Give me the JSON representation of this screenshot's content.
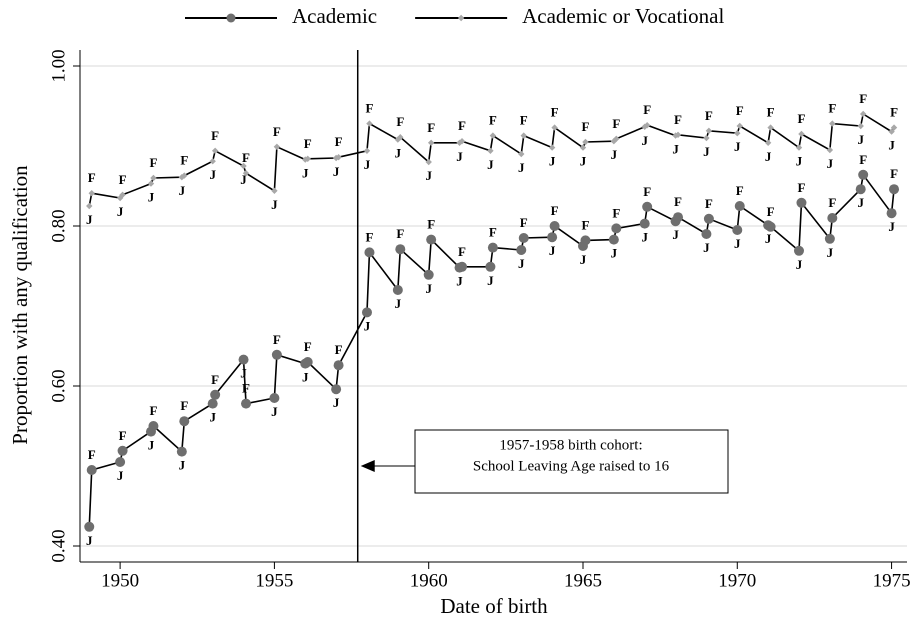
{
  "chart_data": {
    "type": "line",
    "x_label": "Date of birth",
    "y_label": "Proportion with any qualification",
    "x": [
      1949,
      1949.08,
      1950,
      1950.08,
      1951,
      1951.08,
      1952,
      1952.08,
      1953,
      1953.08,
      1954,
      1954.08,
      1955,
      1955.08,
      1956,
      1956.08,
      1957,
      1957.08,
      1958,
      1958.08,
      1959,
      1959.08,
      1960,
      1960.08,
      1961,
      1961.08,
      1962,
      1962.08,
      1963,
      1963.08,
      1964,
      1964.08,
      1965,
      1965.08,
      1966,
      1966.08,
      1967,
      1967.08,
      1968,
      1968.08,
      1969,
      1969.08,
      1970,
      1970.08,
      1971,
      1971.08,
      1972,
      1972.08,
      1973,
      1973.08,
      1974,
      1974.08,
      1975,
      1975.08
    ],
    "point_labels": [
      "J",
      "F",
      "J",
      "F",
      "J",
      "F",
      "J",
      "F",
      "J",
      "F",
      "J",
      "F",
      "J",
      "F",
      "J",
      "F",
      "J",
      "F",
      "J",
      "F",
      "J",
      "F",
      "J",
      "F",
      "J",
      "F",
      "J",
      "F",
      "J",
      "F",
      "J",
      "F",
      "J",
      "F",
      "J",
      "F",
      "J",
      "F",
      "J",
      "F",
      "J",
      "F",
      "J",
      "F",
      "J",
      "F",
      "J",
      "F",
      "J",
      "F",
      "J",
      "F",
      "J",
      "F"
    ],
    "series": [
      {
        "name": "Academic",
        "color": "#6e6e6e",
        "line_color": "#000000",
        "marker": "circle",
        "values": [
          0.424,
          0.495,
          0.505,
          0.519,
          0.543,
          0.55,
          0.518,
          0.556,
          0.578,
          0.589,
          0.633,
          0.578,
          0.585,
          0.639,
          0.628,
          0.63,
          0.596,
          0.626,
          0.692,
          0.767,
          0.72,
          0.771,
          0.739,
          0.783,
          0.748,
          0.749,
          0.749,
          0.773,
          0.77,
          0.785,
          0.786,
          0.8,
          0.775,
          0.782,
          0.783,
          0.797,
          0.803,
          0.824,
          0.806,
          0.811,
          0.79,
          0.809,
          0.795,
          0.825,
          0.801,
          0.799,
          0.769,
          0.829,
          0.784,
          0.81,
          0.846,
          0.864,
          0.816,
          0.846
        ]
      },
      {
        "name": "Academic or Vocational",
        "color": "#a8a8a8",
        "line_color": "#000000",
        "marker": "diamond",
        "values": [
          0.825,
          0.841,
          0.835,
          0.839,
          0.853,
          0.86,
          0.861,
          0.863,
          0.881,
          0.894,
          0.875,
          0.866,
          0.844,
          0.899,
          0.883,
          0.884,
          0.885,
          0.886,
          0.894,
          0.928,
          0.908,
          0.911,
          0.88,
          0.904,
          0.904,
          0.906,
          0.894,
          0.913,
          0.89,
          0.913,
          0.898,
          0.923,
          0.898,
          0.905,
          0.906,
          0.909,
          0.924,
          0.926,
          0.913,
          0.914,
          0.91,
          0.919,
          0.916,
          0.925,
          0.904,
          0.923,
          0.898,
          0.915,
          0.895,
          0.928,
          0.925,
          0.94,
          0.918,
          0.923
        ]
      }
    ],
    "xlim": [
      1948.7,
      1975.5
    ],
    "ylim": [
      0.38,
      1.02
    ],
    "xticks": [
      1950,
      1955,
      1960,
      1965,
      1970,
      1975
    ],
    "yticks": [
      {
        "value": 0.4,
        "label": "0.40"
      },
      {
        "value": 0.6,
        "label": "0.60"
      },
      {
        "value": 0.8,
        "label": "0.80"
      },
      {
        "value": 1.0,
        "label": "1.00"
      }
    ],
    "grid": true,
    "legend_position": "top",
    "reference_line_x": 1957.7,
    "annotation": [
      "1957-1958 birth cohort:",
      "School Leaving Age raised to 16"
    ]
  }
}
